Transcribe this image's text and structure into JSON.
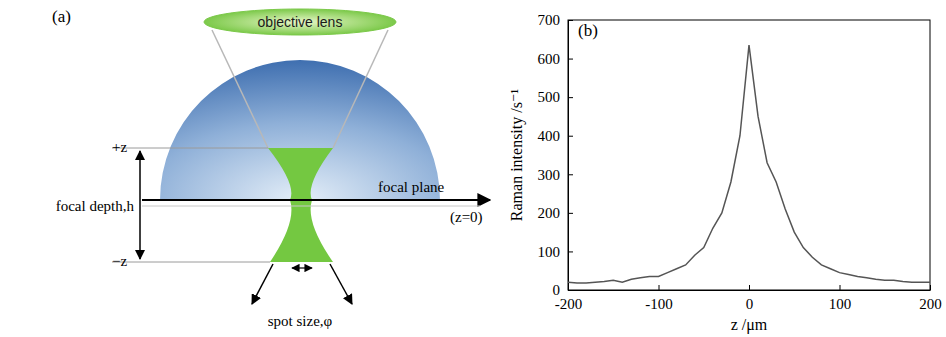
{
  "diagram": {
    "panel_label": "(a)",
    "lens_label": "objective lens",
    "plus_z": "+z",
    "minus_z": "−z",
    "focal_depth": "focal depth,h",
    "focal_plane": "focal plane",
    "focal_plane_z": "(z=0)",
    "spot_size": "spot size,φ"
  },
  "chart_data": {
    "type": "line",
    "title": "(b)",
    "x_label": "z /μm",
    "y_label": "Raman intensity /s⁻¹",
    "color": "#555555",
    "x": [
      -200,
      -190,
      -180,
      -170,
      -160,
      -150,
      -140,
      -130,
      -120,
      -110,
      -100,
      -90,
      -80,
      -70,
      -60,
      -50,
      -40,
      -30,
      -20,
      -10,
      0,
      10,
      20,
      30,
      40,
      50,
      60,
      70,
      80,
      90,
      100,
      110,
      120,
      130,
      140,
      150,
      160,
      170,
      180,
      190,
      200
    ],
    "values": [
      20,
      18,
      18,
      20,
      22,
      25,
      20,
      28,
      32,
      35,
      35,
      45,
      55,
      65,
      90,
      110,
      160,
      200,
      280,
      400,
      635,
      450,
      330,
      280,
      210,
      150,
      110,
      85,
      65,
      55,
      45,
      40,
      35,
      32,
      28,
      25,
      25,
      22,
      20,
      20,
      20
    ],
    "xlim": [
      -200,
      200
    ],
    "ylim": [
      0,
      700
    ],
    "xticks": [
      -200,
      -100,
      0,
      100,
      200
    ],
    "yticks": [
      0,
      100,
      200,
      300,
      400,
      500,
      600,
      700
    ]
  }
}
